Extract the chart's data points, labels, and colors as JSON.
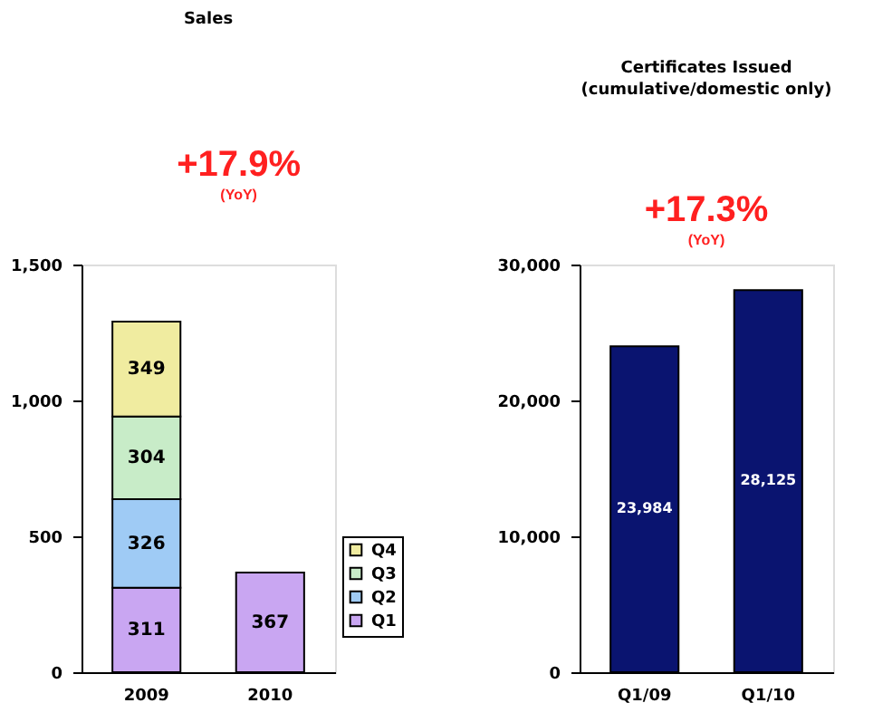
{
  "chart_data": [
    {
      "type": "bar",
      "title": "Sales",
      "stacked": true,
      "categories": [
        "2009",
        "2010"
      ],
      "series": [
        {
          "name": "Q1",
          "color": "#c9a6f2",
          "values": [
            311,
            367
          ]
        },
        {
          "name": "Q2",
          "color": "#9fcbf5",
          "values": [
            326,
            null
          ]
        },
        {
          "name": "Q3",
          "color": "#c8ecc8",
          "values": [
            304,
            null
          ]
        },
        {
          "name": "Q4",
          "color": "#f0eca0",
          "values": [
            349,
            null
          ]
        }
      ],
      "ylim": [
        0,
        1500
      ],
      "yticks": [
        0,
        500,
        {
          "value": 1000,
          "label": "1,000"
        },
        {
          "value": 1500,
          "label": "1,500"
        }
      ],
      "data_labels": true,
      "legend": "bottom right",
      "grid": false,
      "annotations": [
        "+17.9%",
        "(YoY)"
      ]
    },
    {
      "type": "bar",
      "title": "Certificates Issued",
      "subtitle": "(cumulative/domestic only)",
      "categories": [
        "Q1/09",
        "Q1/10"
      ],
      "values": [
        23984,
        28125
      ],
      "value_labels": [
        "23,984",
        "28,125"
      ],
      "color": "#0a1470",
      "ylim": [
        0,
        30000
      ],
      "yticks": [
        0,
        {
          "value": 10000,
          "label": "10,000"
        },
        {
          "value": 20000,
          "label": "20,000"
        },
        {
          "value": 30000,
          "label": "30,000"
        }
      ],
      "grid": false,
      "legend": false,
      "annotations": [
        "+17.3%",
        "(YoY)"
      ]
    }
  ]
}
